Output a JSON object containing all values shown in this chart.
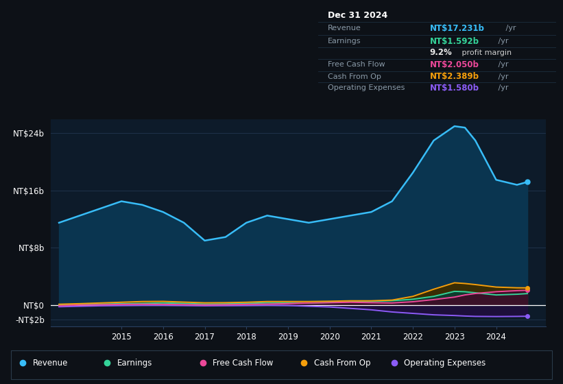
{
  "bg_color": "#0d1117",
  "plot_bg_color": "#0d1b2a",
  "grid_color": "#1e3048",
  "ylim": [
    -3,
    26
  ],
  "xlim": [
    2013.3,
    2025.2
  ],
  "ytick_labels": [
    "NT$24b",
    "NT$16b",
    "NT$8b",
    "NT$0",
    "-NT$2b"
  ],
  "ytick_values": [
    24,
    16,
    8,
    0,
    -2
  ],
  "xtick_values": [
    2015,
    2016,
    2017,
    2018,
    2019,
    2020,
    2021,
    2022,
    2023,
    2024
  ],
  "years": [
    2013.5,
    2014.0,
    2014.5,
    2015.0,
    2015.5,
    2016.0,
    2016.5,
    2017.0,
    2017.5,
    2018.0,
    2018.5,
    2019.0,
    2019.5,
    2020.0,
    2020.5,
    2021.0,
    2021.5,
    2022.0,
    2022.5,
    2023.0,
    2023.25,
    2023.5,
    2024.0,
    2024.5,
    2024.75
  ],
  "revenue": [
    11.5,
    12.5,
    13.5,
    14.5,
    14.0,
    13.0,
    11.5,
    9.0,
    9.5,
    11.5,
    12.5,
    12.0,
    11.5,
    12.0,
    12.5,
    13.0,
    14.5,
    18.5,
    23.0,
    25.0,
    24.8,
    23.0,
    17.5,
    16.8,
    17.2
  ],
  "earnings": [
    0.05,
    0.08,
    0.12,
    0.18,
    0.22,
    0.28,
    0.22,
    0.12,
    0.15,
    0.22,
    0.3,
    0.3,
    0.28,
    0.35,
    0.45,
    0.5,
    0.6,
    0.8,
    1.2,
    1.9,
    1.85,
    1.7,
    1.4,
    1.5,
    1.59
  ],
  "free_cash_flow": [
    -0.1,
    0.0,
    0.03,
    0.08,
    0.1,
    0.08,
    0.05,
    0.0,
    0.03,
    0.08,
    0.12,
    0.18,
    0.28,
    0.32,
    0.38,
    0.32,
    0.28,
    0.45,
    0.75,
    1.1,
    1.4,
    1.6,
    1.85,
    2.0,
    2.05
  ],
  "cash_from_op": [
    0.1,
    0.18,
    0.28,
    0.38,
    0.48,
    0.5,
    0.4,
    0.3,
    0.32,
    0.38,
    0.48,
    0.48,
    0.48,
    0.52,
    0.58,
    0.58,
    0.68,
    1.2,
    2.2,
    3.1,
    3.0,
    2.85,
    2.5,
    2.4,
    2.39
  ],
  "op_expenses": [
    -0.25,
    -0.18,
    -0.12,
    -0.08,
    -0.05,
    -0.05,
    -0.08,
    -0.12,
    -0.1,
    -0.08,
    -0.05,
    -0.08,
    -0.18,
    -0.28,
    -0.48,
    -0.68,
    -0.98,
    -1.18,
    -1.38,
    -1.48,
    -1.55,
    -1.6,
    -1.62,
    -1.6,
    -1.58
  ],
  "revenue_line_color": "#38bdf8",
  "revenue_fill_color": "#0a3550",
  "earnings_line_color": "#34d399",
  "earnings_fill_color": "#0d3d30",
  "fcf_line_color": "#ec4899",
  "fcf_fill_color": "#3d0f28",
  "cashop_line_color": "#f59e0b",
  "cashop_fill_color": "#3d2d00",
  "opex_line_color": "#8b5cf6",
  "opex_fill_color": "#1e0f3d",
  "legend": [
    {
      "label": "Revenue",
      "color": "#38bdf8"
    },
    {
      "label": "Earnings",
      "color": "#34d399"
    },
    {
      "label": "Free Cash Flow",
      "color": "#ec4899"
    },
    {
      "label": "Cash From Op",
      "color": "#f59e0b"
    },
    {
      "label": "Operating Expenses",
      "color": "#8b5cf6"
    }
  ],
  "info_date": "Dec 31 2024",
  "info_rows": [
    {
      "label": "Revenue",
      "value": "NT$17.231b",
      "value_color": "#38bdf8",
      "suffix": " /yr"
    },
    {
      "label": "Earnings",
      "value": "NT$1.592b",
      "value_color": "#34d399",
      "suffix": " /yr"
    },
    {
      "label": "",
      "value": "9.2%",
      "value_color": "#e8e8e8",
      "suffix": " profit margin"
    },
    {
      "label": "Free Cash Flow",
      "value": "NT$2.050b",
      "value_color": "#ec4899",
      "suffix": " /yr"
    },
    {
      "label": "Cash From Op",
      "value": "NT$2.389b",
      "value_color": "#f59e0b",
      "suffix": " /yr"
    },
    {
      "label": "Operating Expenses",
      "value": "NT$1.580b",
      "value_color": "#8b5cf6",
      "suffix": " /yr"
    }
  ]
}
